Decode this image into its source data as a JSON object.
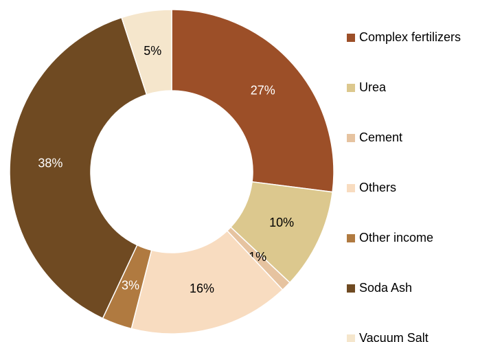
{
  "chart_data": {
    "type": "donut",
    "categories": [
      "Complex fertilizers",
      "Urea",
      "Cement",
      "Others",
      "Other income",
      "Soda Ash",
      "Vacuum Salt"
    ],
    "values": [
      27,
      10,
      1,
      16,
      3,
      38,
      5
    ],
    "value_labels": [
      "27%",
      "10%",
      "1%",
      "16%",
      "3%",
      "38%",
      "5%"
    ],
    "colors": [
      "#9c4f28",
      "#dcc88e",
      "#e6c3a0",
      "#f8dcc0",
      "#b07a40",
      "#6f4a22",
      "#f5e6cc"
    ],
    "legend": "right"
  }
}
